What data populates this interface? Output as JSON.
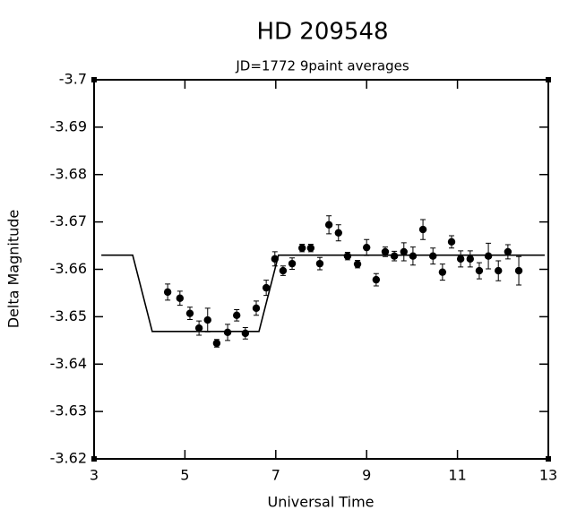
{
  "chart_data": {
    "type": "scatter",
    "title": "HD 209548",
    "subtitle": "JD=1772  9paint averages",
    "x_label": "Universal Time",
    "y_label": "Delta Magnitude",
    "color": "#000000",
    "x": [
      4.62,
      4.89,
      5.11,
      5.31,
      5.5,
      5.7,
      5.94,
      6.14,
      6.33,
      6.57,
      6.79,
      6.98,
      7.16,
      7.36,
      7.58,
      7.77,
      7.97,
      8.17,
      8.38,
      8.58,
      8.8,
      9.0,
      9.21,
      9.41,
      9.61,
      9.82,
      10.02,
      10.24,
      10.46,
      10.67,
      10.87,
      11.07,
      11.28,
      11.48,
      11.68,
      11.9,
      12.11,
      12.35
    ],
    "values": [
      -3.6552,
      -3.6539,
      -3.6507,
      -3.6476,
      -3.6493,
      -3.6444,
      -3.6467,
      -3.6503,
      -3.6465,
      -3.6518,
      -3.6561,
      -3.6622,
      -3.6597,
      -3.6612,
      -3.6645,
      -3.6645,
      -3.6612,
      -3.6694,
      -3.6677,
      -3.6628,
      -3.6611,
      -3.6646,
      -3.6578,
      -3.6637,
      -3.6628,
      -3.6637,
      -3.6628,
      -3.6684,
      -3.6628,
      -3.6594,
      -3.6658,
      -3.6622,
      -3.6622,
      -3.6597,
      -3.6628,
      -3.6597,
      -3.6637,
      -3.6597
    ],
    "errors": [
      0.0017,
      0.0015,
      0.0013,
      0.0015,
      0.0025,
      0.0008,
      0.0017,
      0.0012,
      0.0012,
      0.0015,
      0.0016,
      0.0015,
      0.001,
      0.0012,
      0.0008,
      0.0008,
      0.0013,
      0.0019,
      0.0017,
      0.0008,
      0.0008,
      0.0017,
      0.0013,
      0.001,
      0.001,
      0.0019,
      0.0019,
      0.0021,
      0.0017,
      0.0017,
      0.0013,
      0.0017,
      0.0017,
      0.0017,
      0.0027,
      0.0021,
      0.0015,
      0.003
    ],
    "model": {
      "color": "#000000",
      "x": [
        3.16,
        3.85,
        4.28,
        6.63,
        7.06,
        12.92
      ],
      "values": [
        -3.663,
        -3.663,
        -3.6469,
        -3.6469,
        -3.663,
        -3.663
      ]
    },
    "xlim": [
      3,
      13
    ],
    "xticks": [
      3,
      5,
      7,
      9,
      11,
      13
    ],
    "ylim": [
      -3.62,
      -3.7
    ],
    "yticks": [
      -3.7,
      -3.69,
      -3.68,
      -3.67,
      -3.66,
      -3.65,
      -3.64,
      -3.63,
      -3.62
    ]
  }
}
